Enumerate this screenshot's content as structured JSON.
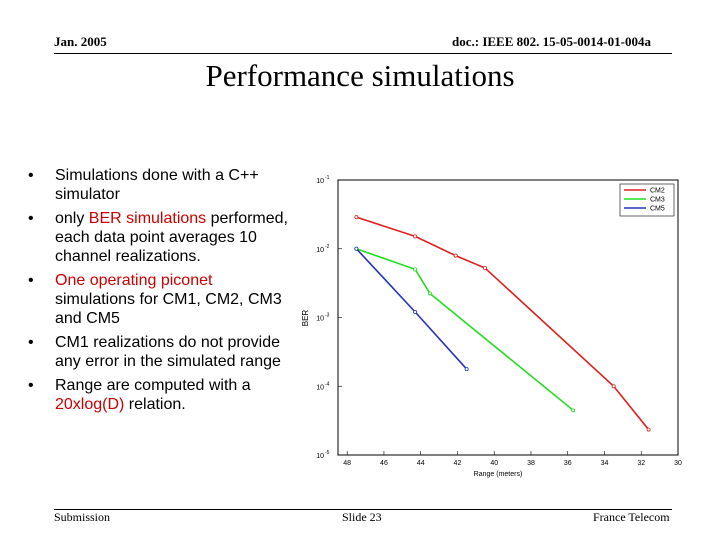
{
  "header": {
    "date": "Jan. 2005",
    "doc": "doc.: IEEE 802. 15-05-0014-01-004a"
  },
  "title": "Performance simulations",
  "bullets": [
    {
      "parts": [
        {
          "text": "Simulations done with a C++ simulator",
          "highlight": false
        }
      ]
    },
    {
      "parts": [
        {
          "text": "only ",
          "highlight": false
        },
        {
          "text": "BER simulations",
          "highlight": true
        },
        {
          "text": " performed, each data point averages 10 channel realizations.",
          "highlight": false
        }
      ]
    },
    {
      "parts": [
        {
          "text": "One operating piconet",
          "highlight": true
        },
        {
          "text": " simulations for CM1, CM2, CM3 and CM5",
          "highlight": false
        }
      ]
    },
    {
      "parts": [
        {
          "text": "CM1 realizations do not provide any error in the simulated range",
          "highlight": false
        }
      ]
    },
    {
      "parts": [
        {
          "text": "Range are computed with a ",
          "highlight": false
        },
        {
          "text": "20xlog(D)",
          "highlight": true
        },
        {
          "text": " relation.",
          "highlight": false
        }
      ]
    }
  ],
  "bullet_symbol": "•",
  "chart_data": {
    "type": "line",
    "title": "",
    "xlabel": "Range (meters)",
    "ylabel": "BER",
    "x_ticks": [
      "48",
      "46",
      "44",
      "42",
      "40",
      "38",
      "36",
      "34",
      "32",
      "30"
    ],
    "xlim": [
      48.5,
      30
    ],
    "y_ticks": [
      -1,
      -2,
      -3,
      -4,
      -5
    ],
    "ylim": [
      -5,
      -1
    ],
    "y_scale": "log10",
    "y_tick_base": "10",
    "legend_position": "top-right",
    "series": [
      {
        "name": "CM2",
        "color": "#e02020",
        "x": [
          47.5,
          44.3,
          42.1,
          40.5,
          33.5,
          31.6
        ],
        "log_y": [
          -1.54,
          -1.82,
          -2.1,
          -2.28,
          -4.0,
          -4.63
        ]
      },
      {
        "name": "CM3",
        "color": "#22dd22",
        "x": [
          47.5,
          44.3,
          43.5,
          35.7
        ],
        "log_y": [
          -2.0,
          -2.3,
          -2.65,
          -4.35
        ]
      },
      {
        "name": "CM5",
        "color": "#2233bb",
        "x": [
          47.5,
          44.3,
          41.5
        ],
        "log_y": [
          -2.0,
          -2.92,
          -3.75
        ]
      }
    ]
  },
  "footer": {
    "left": "Submission",
    "center": "Slide 23",
    "right": "France Telecom"
  }
}
